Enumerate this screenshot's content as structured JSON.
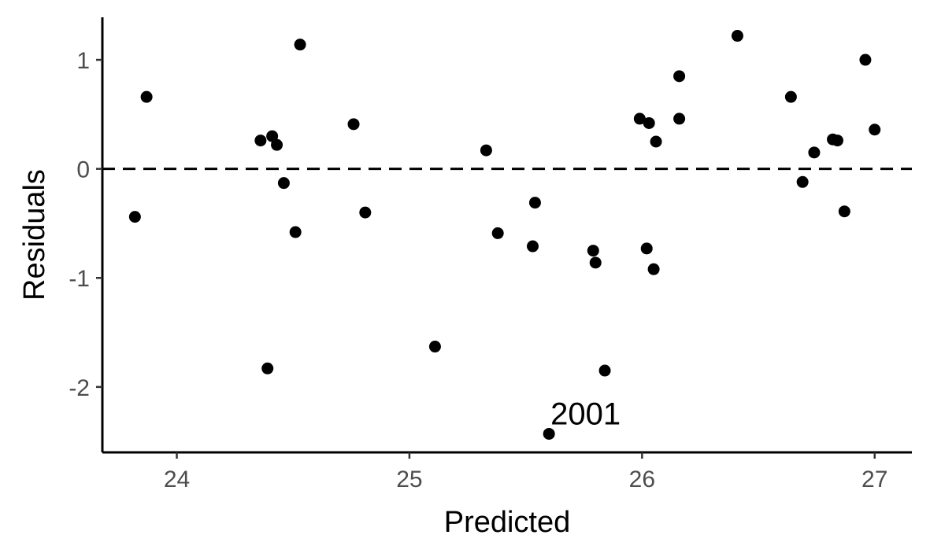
{
  "chart_data": {
    "type": "scatter",
    "xlabel": "Predicted",
    "ylabel": "Residuals",
    "xlim": [
      23.68,
      27.16
    ],
    "ylim": [
      -2.6,
      1.39
    ],
    "x_ticks": [
      24,
      25,
      26,
      27
    ],
    "y_ticks": [
      -2,
      -1,
      0,
      1
    ],
    "reference_line": {
      "y": 0,
      "style": "dashed"
    },
    "grid": false,
    "points": [
      {
        "x": 23.82,
        "y": -0.44
      },
      {
        "x": 23.87,
        "y": 0.66
      },
      {
        "x": 24.36,
        "y": 0.26
      },
      {
        "x": 24.39,
        "y": -1.83
      },
      {
        "x": 24.41,
        "y": 0.3
      },
      {
        "x": 24.43,
        "y": 0.22
      },
      {
        "x": 24.46,
        "y": -0.13
      },
      {
        "x": 24.51,
        "y": -0.58
      },
      {
        "x": 24.53,
        "y": 1.14
      },
      {
        "x": 24.76,
        "y": 0.41
      },
      {
        "x": 24.81,
        "y": -0.4
      },
      {
        "x": 25.11,
        "y": -1.63
      },
      {
        "x": 25.33,
        "y": 0.17
      },
      {
        "x": 25.38,
        "y": -0.59
      },
      {
        "x": 25.53,
        "y": -0.71
      },
      {
        "x": 25.54,
        "y": -0.31
      },
      {
        "x": 25.6,
        "y": -2.43
      },
      {
        "x": 25.79,
        "y": -0.75
      },
      {
        "x": 25.8,
        "y": -0.86
      },
      {
        "x": 25.84,
        "y": -1.85
      },
      {
        "x": 25.99,
        "y": 0.46
      },
      {
        "x": 26.02,
        "y": -0.73
      },
      {
        "x": 26.03,
        "y": 0.42
      },
      {
        "x": 26.05,
        "y": -0.92
      },
      {
        "x": 26.06,
        "y": 0.25
      },
      {
        "x": 26.16,
        "y": 0.85
      },
      {
        "x": 26.16,
        "y": 0.46
      },
      {
        "x": 26.41,
        "y": 1.22
      },
      {
        "x": 26.64,
        "y": 0.66
      },
      {
        "x": 26.69,
        "y": -0.12
      },
      {
        "x": 26.74,
        "y": 0.15
      },
      {
        "x": 26.82,
        "y": 0.27
      },
      {
        "x": 26.84,
        "y": 0.26
      },
      {
        "x": 26.87,
        "y": -0.39
      },
      {
        "x": 26.96,
        "y": 1.0
      },
      {
        "x": 27.0,
        "y": 0.36
      }
    ],
    "annotations": [
      {
        "text": "2001",
        "x": 25.6,
        "y": -2.43
      }
    ]
  }
}
